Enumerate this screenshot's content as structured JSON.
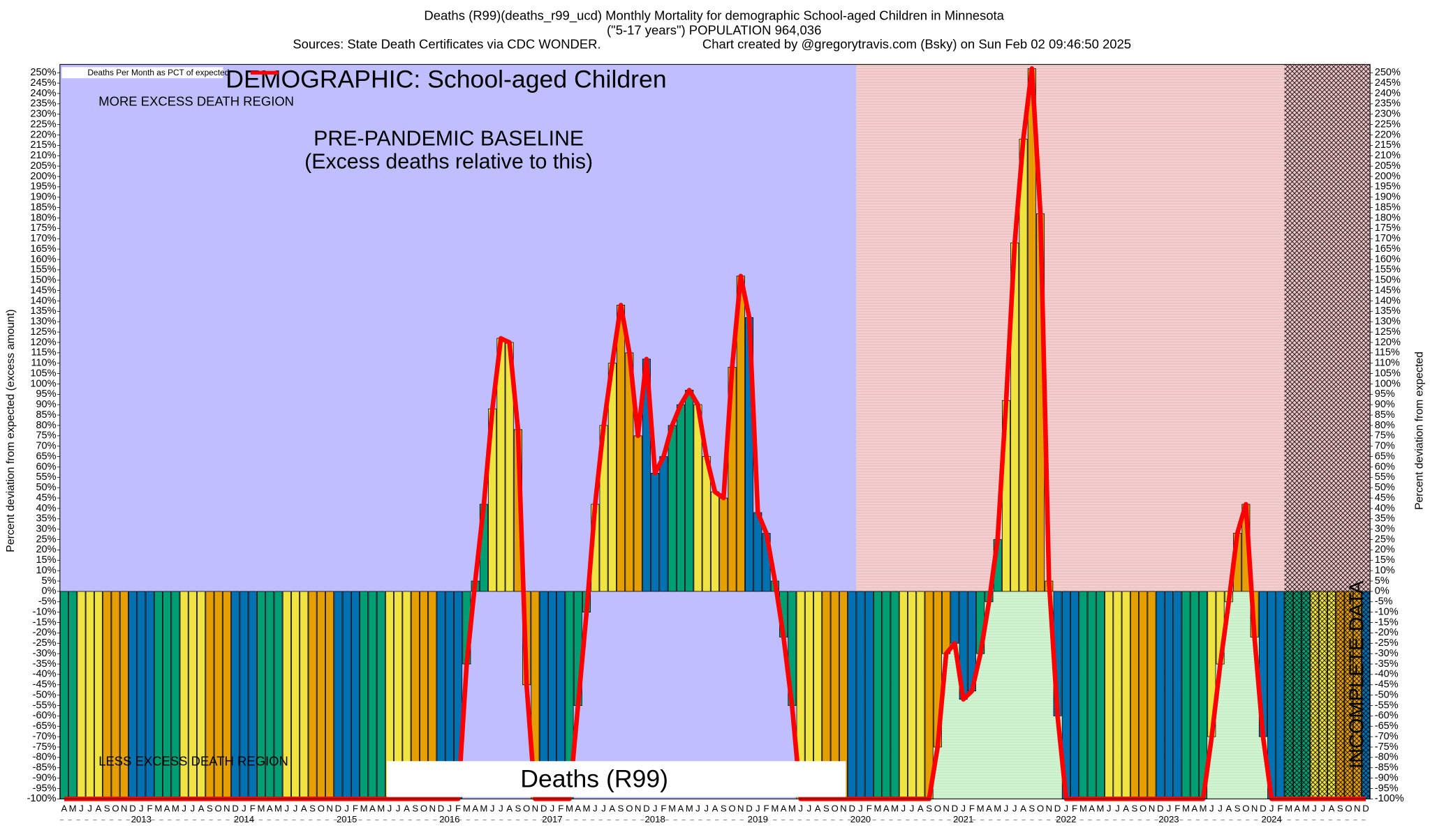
{
  "chart_data": {
    "type": "bar",
    "title": "Deaths (R99)(deaths_r99_ucd) Monthly Mortality for demographic School-aged Children in Minnesota",
    "subtitle": "(\"5-17 years\") POPULATION 964,036",
    "source": "Sources: State Death Certificates via CDC WONDER.",
    "credit": "Chart created by @gregorytravis.com (Bsky) on Sun Feb 02 09:46:50 2025",
    "demographic_label": "DEMOGRAPHIC: School-aged Children",
    "more_label": "MORE EXCESS DEATH REGION",
    "less_label": "LESS EXCESS DEATH REGION",
    "baseline_label": [
      "PRE-PANDEMIC BASELINE",
      "(Excess deaths relative to this)"
    ],
    "bottom_label": "Deaths (R99)",
    "incomplete_label": "INCOMPLETE DATA",
    "y_label": "Percent deviation from expected (excess amount)",
    "y2_label": "Percent deviation from expected",
    "series": [
      {
        "name": "Deaths Per Month as PCT of expected",
        "color": "#ff0000",
        "values": [
          -100,
          -100,
          -100,
          -100,
          -100,
          -100,
          -100,
          -100,
          -100,
          -100,
          -100,
          -100,
          -100,
          -100,
          -100,
          -100,
          -100,
          -100,
          -100,
          -100,
          -100,
          -100,
          -100,
          -100,
          -100,
          -100,
          -100,
          -100,
          -100,
          -100,
          -100,
          -100,
          -100,
          -100,
          -100,
          -100,
          -100,
          -100,
          -100,
          -100,
          -100,
          -100,
          -100,
          -100,
          -100,
          -100,
          -100,
          -35,
          5,
          42,
          88,
          122,
          120,
          78,
          -45,
          -100,
          -100,
          -100,
          -100,
          -100,
          -55,
          -10,
          42,
          80,
          110,
          138,
          115,
          75,
          112,
          57,
          65,
          80,
          90,
          97,
          90,
          65,
          48,
          45,
          108,
          152,
          132,
          38,
          28,
          5,
          -22,
          -55,
          -100,
          -100,
          -100,
          -100,
          -100,
          -100,
          -100,
          -100,
          -100,
          -100,
          -100,
          -100,
          -100,
          -100,
          -100,
          -100,
          -75,
          -30,
          -25,
          -52,
          -48,
          -30,
          -5,
          25,
          92,
          168,
          218,
          252,
          182,
          5,
          -60,
          -100,
          -100,
          -100,
          -100,
          -100,
          -100,
          -100,
          -100,
          -100,
          -100,
          -100,
          -100,
          -100,
          -100,
          -100,
          -100,
          -100,
          -70,
          -35,
          -5,
          28,
          42,
          -22,
          -70,
          -100,
          -100,
          -100,
          -100,
          -100,
          -100,
          -100,
          -100,
          -100,
          -100,
          -100,
          -100
        ]
      }
    ],
    "month_colors": [
      "#0072b2",
      "#0072b2",
      "#009e73",
      "#009e73",
      "#009e73",
      "#f0e442",
      "#f0e442",
      "#f0e442",
      "#e69f00",
      "#e69f00",
      "#e69f00",
      "#0072b2"
    ],
    "categories": [
      "A",
      "M",
      "J",
      "J",
      "A",
      "S",
      "O",
      "N",
      "D",
      "J",
      "F",
      "M",
      "A",
      "M",
      "J",
      "J",
      "A",
      "S",
      "O",
      "N",
      "D",
      "J",
      "F",
      "M",
      "A",
      "M",
      "J",
      "J",
      "A",
      "S",
      "O",
      "N",
      "D",
      "J",
      "F",
      "M",
      "A",
      "M",
      "J",
      "J",
      "A",
      "S",
      "O",
      "N",
      "D",
      "J",
      "F",
      "M",
      "A",
      "M",
      "J",
      "J",
      "A",
      "S",
      "O",
      "N",
      "D",
      "J",
      "F",
      "M",
      "A",
      "M",
      "J",
      "J",
      "A",
      "S",
      "O",
      "N",
      "D",
      "J",
      "F",
      "M",
      "A",
      "M",
      "J",
      "J",
      "A",
      "S",
      "O",
      "N",
      "D",
      "J",
      "F",
      "M",
      "A",
      "M",
      "J",
      "J",
      "A",
      "S",
      "O",
      "N",
      "D",
      "J",
      "F",
      "M",
      "A",
      "M",
      "J",
      "J",
      "A",
      "S",
      "O",
      "N",
      "D",
      "J",
      "F",
      "M",
      "A",
      "M",
      "J",
      "J",
      "A",
      "S",
      "O",
      "N",
      "D",
      "J",
      "F",
      "M",
      "A",
      "M",
      "J",
      "J",
      "A",
      "S",
      "O",
      "N",
      "D",
      "J",
      "F",
      "M",
      "A",
      "M",
      "J",
      "J",
      "A",
      "S",
      "O",
      "N",
      "D",
      "J",
      "F",
      "M",
      "A",
      "M",
      "J",
      "J",
      "A",
      "S",
      "O",
      "N",
      "D"
    ],
    "years": [
      "2013",
      "2014",
      "2015",
      "2016",
      "2017",
      "2018",
      "2019",
      "2020",
      "2021",
      "2022",
      "2023",
      "2024"
    ],
    "baseline_color": "#bfbfff",
    "pandemic_region": {
      "start": 93,
      "color": "#efc4c4",
      "below_color": "#c8efc8"
    },
    "incomplete_region": {
      "start": 143
    },
    "ylim": [
      -100,
      254
    ],
    "yticks": [
      {
        "value": -100,
        "label": "-100%"
      },
      {
        "value": -95,
        "label": "-95%"
      },
      {
        "value": -90,
        "label": "-90%"
      },
      {
        "value": -85,
        "label": "-85%"
      },
      {
        "value": -80,
        "label": "-80%"
      },
      {
        "value": -75,
        "label": "-75%"
      },
      {
        "value": -70,
        "label": "-70%"
      },
      {
        "value": -65,
        "label": "-65%"
      },
      {
        "value": -60,
        "label": "-60%"
      },
      {
        "value": -55,
        "label": "-55%"
      },
      {
        "value": -50,
        "label": "-50%"
      },
      {
        "value": -45,
        "label": "-45%"
      },
      {
        "value": -40,
        "label": "-40%"
      },
      {
        "value": -35,
        "label": "-35%"
      },
      {
        "value": -30,
        "label": "-30%"
      },
      {
        "value": -25,
        "label": "-25%"
      },
      {
        "value": -20,
        "label": "-20%"
      },
      {
        "value": -15,
        "label": "-15%"
      },
      {
        "value": -10,
        "label": "-10%"
      },
      {
        "value": -5,
        "label": "-5%"
      },
      {
        "value": 0,
        "label": "0%"
      },
      {
        "value": 5,
        "label": "5%"
      },
      {
        "value": 10,
        "label": "10%"
      },
      {
        "value": 15,
        "label": "15%"
      },
      {
        "value": 20,
        "label": "20%"
      },
      {
        "value": 25,
        "label": "25%"
      },
      {
        "value": 30,
        "label": "30%"
      },
      {
        "value": 35,
        "label": "35%"
      },
      {
        "value": 40,
        "label": "40%"
      },
      {
        "value": 45,
        "label": "45%"
      },
      {
        "value": 50,
        "label": "50%"
      },
      {
        "value": 55,
        "label": "55%"
      },
      {
        "value": 60,
        "label": "60%"
      },
      {
        "value": 65,
        "label": "65%"
      },
      {
        "value": 70,
        "label": "70%"
      },
      {
        "value": 75,
        "label": "75%"
      },
      {
        "value": 80,
        "label": "80%"
      },
      {
        "value": 85,
        "label": "85%"
      },
      {
        "value": 90,
        "label": "90%"
      },
      {
        "value": 95,
        "label": "95%"
      },
      {
        "value": 100,
        "label": "100%"
      },
      {
        "value": 105,
        "label": "105%"
      },
      {
        "value": 110,
        "label": "110%"
      },
      {
        "value": 115,
        "label": "115%"
      },
      {
        "value": 120,
        "label": "120%"
      },
      {
        "value": 125,
        "label": "125%"
      },
      {
        "value": 130,
        "label": "130%"
      },
      {
        "value": 135,
        "label": "135%"
      },
      {
        "value": 140,
        "label": "140%"
      },
      {
        "value": 145,
        "label": "145%"
      },
      {
        "value": 150,
        "label": "150%"
      },
      {
        "value": 155,
        "label": "155%"
      },
      {
        "value": 160,
        "label": "160%"
      },
      {
        "value": 165,
        "label": "165%"
      },
      {
        "value": 170,
        "label": "170%"
      },
      {
        "value": 175,
        "label": "175%"
      },
      {
        "value": 180,
        "label": "180%"
      },
      {
        "value": 185,
        "label": "185%"
      },
      {
        "value": 190,
        "label": "190%"
      },
      {
        "value": 195,
        "label": "195%"
      },
      {
        "value": 200,
        "label": "200%"
      },
      {
        "value": 205,
        "label": "205%"
      },
      {
        "value": 210,
        "label": "210%"
      },
      {
        "value": 215,
        "label": "215%"
      },
      {
        "value": 220,
        "label": "220%"
      },
      {
        "value": 225,
        "label": "225%"
      },
      {
        "value": 230,
        "label": "230%"
      },
      {
        "value": 235,
        "label": "235%"
      },
      {
        "value": 240,
        "label": "240%"
      },
      {
        "value": 245,
        "label": "245%"
      },
      {
        "value": 250,
        "label": "250%"
      }
    ]
  }
}
